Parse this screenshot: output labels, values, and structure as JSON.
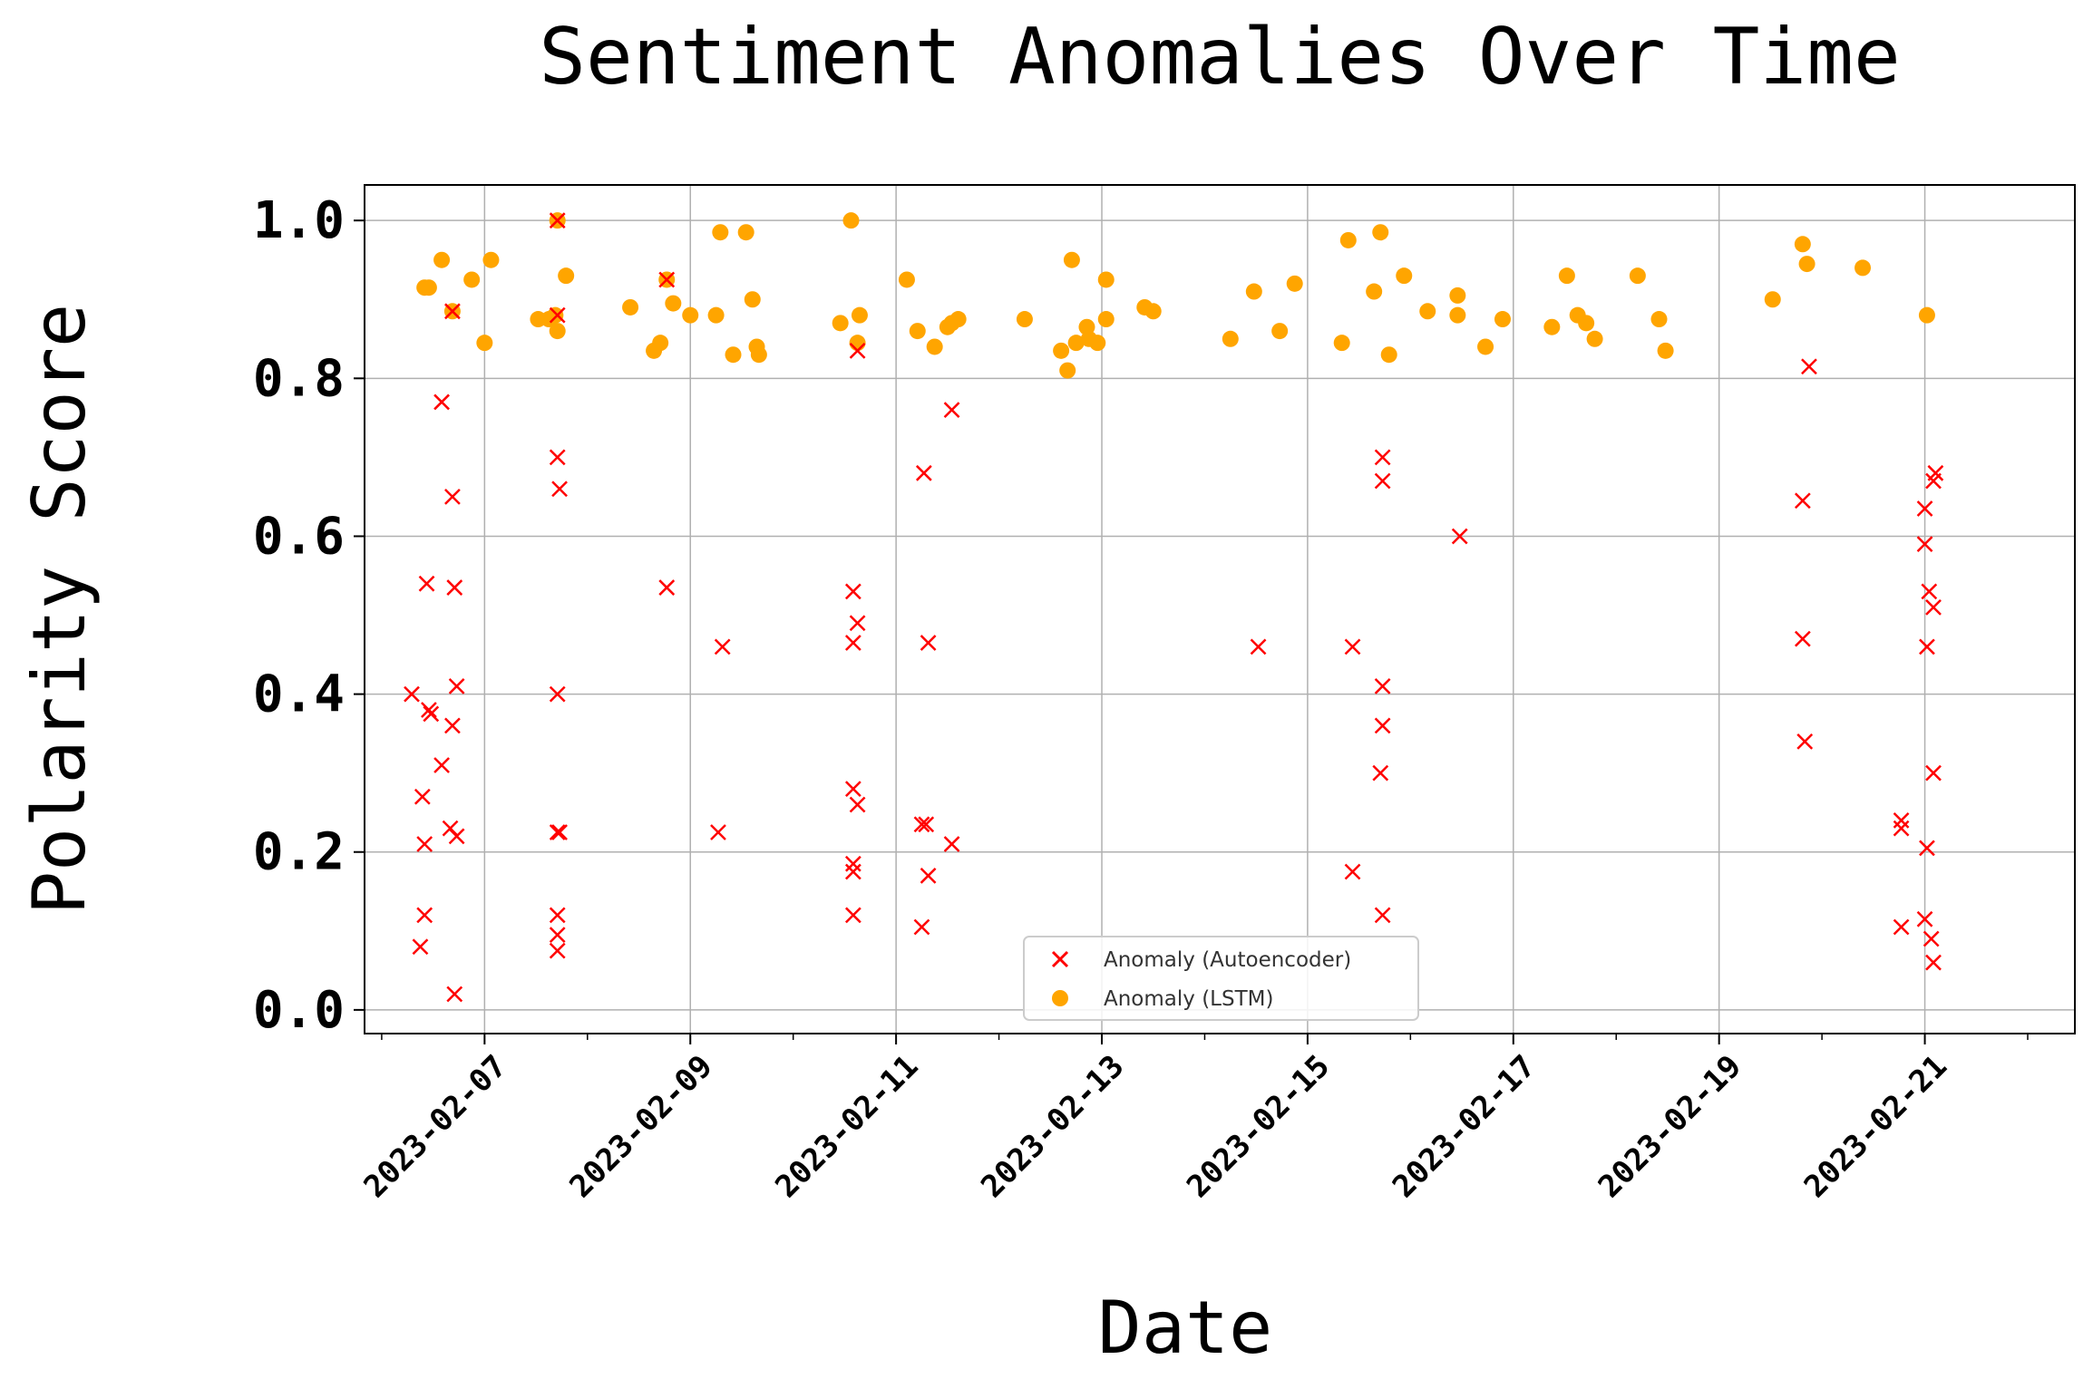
{
  "chart_data": {
    "type": "scatter",
    "title": "Sentiment Anomalies Over Time",
    "xlabel": "Date",
    "ylabel": "Polarity Score",
    "x_range": [
      "2023-02-05T20:00",
      "2023-02-22T11:00"
    ],
    "ylim": [
      -0.03,
      1.045
    ],
    "yticks": [
      "0.0",
      "0.2",
      "0.4",
      "0.6",
      "0.8",
      "1.0"
    ],
    "xticks": [
      "2023-02-07",
      "2023-02-09",
      "2023-02-11",
      "2023-02-13",
      "2023-02-15",
      "2023-02-17",
      "2023-02-19",
      "2023-02-21"
    ],
    "grid": true,
    "legend_position": "lower center",
    "colors": {
      "autoencoder": "#ff0000",
      "lstm": "#ffa500"
    },
    "series": [
      {
        "name": "Anomaly (Autoencoder)",
        "marker": "x",
        "points": [
          {
            "x": "2023-02-06T07:00",
            "y": 0.4
          },
          {
            "x": "2023-02-06T09:00",
            "y": 0.08
          },
          {
            "x": "2023-02-06T09:30",
            "y": 0.27
          },
          {
            "x": "2023-02-06T10:00",
            "y": 0.12
          },
          {
            "x": "2023-02-06T10:00",
            "y": 0.21
          },
          {
            "x": "2023-02-06T10:30",
            "y": 0.54
          },
          {
            "x": "2023-02-06T11:00",
            "y": 0.38
          },
          {
            "x": "2023-02-06T11:30",
            "y": 0.375
          },
          {
            "x": "2023-02-06T14:00",
            "y": 0.31
          },
          {
            "x": "2023-02-06T14:00",
            "y": 0.77
          },
          {
            "x": "2023-02-06T16:00",
            "y": 0.23
          },
          {
            "x": "2023-02-06T16:30",
            "y": 0.36
          },
          {
            "x": "2023-02-06T16:30",
            "y": 0.65
          },
          {
            "x": "2023-02-06T17:00",
            "y": 0.02
          },
          {
            "x": "2023-02-06T17:00",
            "y": 0.535
          },
          {
            "x": "2023-02-06T17:30",
            "y": 0.41
          },
          {
            "x": "2023-02-06T17:30",
            "y": 0.22
          },
          {
            "x": "2023-02-06T16:30",
            "y": 0.885
          },
          {
            "x": "2023-02-07T17:00",
            "y": 0.075
          },
          {
            "x": "2023-02-07T17:00",
            "y": 0.095
          },
          {
            "x": "2023-02-07T17:00",
            "y": 0.12
          },
          {
            "x": "2023-02-07T17:00",
            "y": 0.225
          },
          {
            "x": "2023-02-07T17:30",
            "y": 0.225
          },
          {
            "x": "2023-02-07T17:00",
            "y": 0.4
          },
          {
            "x": "2023-02-07T17:30",
            "y": 0.66
          },
          {
            "x": "2023-02-07T17:00",
            "y": 0.7
          },
          {
            "x": "2023-02-07T17:00",
            "y": 0.88
          },
          {
            "x": "2023-02-07T17:00",
            "y": 1.0
          },
          {
            "x": "2023-02-08T18:30",
            "y": 0.535
          },
          {
            "x": "2023-02-08T18:30",
            "y": 0.925
          },
          {
            "x": "2023-02-09T06:30",
            "y": 0.225
          },
          {
            "x": "2023-02-09T07:30",
            "y": 0.46
          },
          {
            "x": "2023-02-10T14:00",
            "y": 0.12
          },
          {
            "x": "2023-02-10T14:00",
            "y": 0.175
          },
          {
            "x": "2023-02-10T14:00",
            "y": 0.185
          },
          {
            "x": "2023-02-10T14:00",
            "y": 0.28
          },
          {
            "x": "2023-02-10T14:00",
            "y": 0.465
          },
          {
            "x": "2023-02-10T14:00",
            "y": 0.53
          },
          {
            "x": "2023-02-10T15:00",
            "y": 0.26
          },
          {
            "x": "2023-02-10T15:00",
            "y": 0.49
          },
          {
            "x": "2023-02-10T15:00",
            "y": 0.835
          },
          {
            "x": "2023-02-11T06:00",
            "y": 0.105
          },
          {
            "x": "2023-02-11T06:00",
            "y": 0.235
          },
          {
            "x": "2023-02-11T07:00",
            "y": 0.235
          },
          {
            "x": "2023-02-11T06:30",
            "y": 0.68
          },
          {
            "x": "2023-02-11T07:30",
            "y": 0.17
          },
          {
            "x": "2023-02-11T07:30",
            "y": 0.465
          },
          {
            "x": "2023-02-11T13:00",
            "y": 0.21
          },
          {
            "x": "2023-02-11T13:00",
            "y": 0.76
          },
          {
            "x": "2023-02-14T12:30",
            "y": 0.46
          },
          {
            "x": "2023-02-15T10:30",
            "y": 0.175
          },
          {
            "x": "2023-02-15T10:30",
            "y": 0.46
          },
          {
            "x": "2023-02-15T17:30",
            "y": 0.12
          },
          {
            "x": "2023-02-15T17:00",
            "y": 0.3
          },
          {
            "x": "2023-02-15T17:30",
            "y": 0.36
          },
          {
            "x": "2023-02-15T17:30",
            "y": 0.41
          },
          {
            "x": "2023-02-15T17:30",
            "y": 0.67
          },
          {
            "x": "2023-02-15T17:30",
            "y": 0.7
          },
          {
            "x": "2023-02-16T11:30",
            "y": 0.6
          },
          {
            "x": "2023-02-19T20:00",
            "y": 0.34
          },
          {
            "x": "2023-02-19T19:30",
            "y": 0.47
          },
          {
            "x": "2023-02-19T19:30",
            "y": 0.645
          },
          {
            "x": "2023-02-19T21:00",
            "y": 0.815
          },
          {
            "x": "2023-02-20T18:30",
            "y": 0.105
          },
          {
            "x": "2023-02-20T18:30",
            "y": 0.23
          },
          {
            "x": "2023-02-20T18:30",
            "y": 0.24
          },
          {
            "x": "2023-02-21T00:00",
            "y": 0.115
          },
          {
            "x": "2023-02-21T00:30",
            "y": 0.205
          },
          {
            "x": "2023-02-21T00:30",
            "y": 0.46
          },
          {
            "x": "2023-02-21T00:00",
            "y": 0.59
          },
          {
            "x": "2023-02-21T00:00",
            "y": 0.635
          },
          {
            "x": "2023-02-21T01:00",
            "y": 0.53
          },
          {
            "x": "2023-02-21T02:00",
            "y": 0.51
          },
          {
            "x": "2023-02-21T02:00",
            "y": 0.3
          },
          {
            "x": "2023-02-21T02:00",
            "y": 0.06
          },
          {
            "x": "2023-02-21T01:30",
            "y": 0.09
          },
          {
            "x": "2023-02-21T02:00",
            "y": 0.67
          },
          {
            "x": "2023-02-21T02:30",
            "y": 0.68
          }
        ]
      },
      {
        "name": "Anomaly (LSTM)",
        "marker": "o",
        "points": [
          {
            "x": "2023-02-06T10:00",
            "y": 0.915
          },
          {
            "x": "2023-02-06T11:00",
            "y": 0.915
          },
          {
            "x": "2023-02-06T14:00",
            "y": 0.95
          },
          {
            "x": "2023-02-06T16:30",
            "y": 0.885
          },
          {
            "x": "2023-02-06T21:00",
            "y": 0.925
          },
          {
            "x": "2023-02-07T00:00",
            "y": 0.845
          },
          {
            "x": "2023-02-07T01:30",
            "y": 0.95
          },
          {
            "x": "2023-02-07T12:30",
            "y": 0.875
          },
          {
            "x": "2023-02-07T15:00",
            "y": 0.875
          },
          {
            "x": "2023-02-07T16:30",
            "y": 0.88
          },
          {
            "x": "2023-02-07T17:00",
            "y": 0.86
          },
          {
            "x": "2023-02-07T17:00",
            "y": 1.0
          },
          {
            "x": "2023-02-07T19:00",
            "y": 0.93
          },
          {
            "x": "2023-02-08T10:00",
            "y": 0.89
          },
          {
            "x": "2023-02-08T15:30",
            "y": 0.835
          },
          {
            "x": "2023-02-08T17:00",
            "y": 0.845
          },
          {
            "x": "2023-02-08T18:30",
            "y": 0.925
          },
          {
            "x": "2023-02-08T20:00",
            "y": 0.895
          },
          {
            "x": "2023-02-09T00:00",
            "y": 0.88
          },
          {
            "x": "2023-02-09T06:00",
            "y": 0.88
          },
          {
            "x": "2023-02-09T07:00",
            "y": 0.985
          },
          {
            "x": "2023-02-09T10:00",
            "y": 0.83
          },
          {
            "x": "2023-02-09T13:00",
            "y": 0.985
          },
          {
            "x": "2023-02-09T14:30",
            "y": 0.9
          },
          {
            "x": "2023-02-09T15:30",
            "y": 0.84
          },
          {
            "x": "2023-02-09T16:00",
            "y": 0.83
          },
          {
            "x": "2023-02-10T11:00",
            "y": 0.87
          },
          {
            "x": "2023-02-10T13:30",
            "y": 1.0
          },
          {
            "x": "2023-02-10T15:00",
            "y": 0.845
          },
          {
            "x": "2023-02-10T15:30",
            "y": 0.88
          },
          {
            "x": "2023-02-11T02:30",
            "y": 0.925
          },
          {
            "x": "2023-02-11T05:00",
            "y": 0.86
          },
          {
            "x": "2023-02-11T09:00",
            "y": 0.84
          },
          {
            "x": "2023-02-11T12:00",
            "y": 0.865
          },
          {
            "x": "2023-02-11T13:00",
            "y": 0.87
          },
          {
            "x": "2023-02-11T14:30",
            "y": 0.875
          },
          {
            "x": "2023-02-12T06:00",
            "y": 0.875
          },
          {
            "x": "2023-02-12T14:30",
            "y": 0.835
          },
          {
            "x": "2023-02-12T16:00",
            "y": 0.81
          },
          {
            "x": "2023-02-12T17:00",
            "y": 0.95
          },
          {
            "x": "2023-02-12T18:00",
            "y": 0.845
          },
          {
            "x": "2023-02-12T20:30",
            "y": 0.865
          },
          {
            "x": "2023-02-12T21:00",
            "y": 0.85
          },
          {
            "x": "2023-02-12T23:00",
            "y": 0.845
          },
          {
            "x": "2023-02-13T01:00",
            "y": 0.925
          },
          {
            "x": "2023-02-13T01:00",
            "y": 0.875
          },
          {
            "x": "2023-02-13T10:00",
            "y": 0.89
          },
          {
            "x": "2023-02-13T12:00",
            "y": 0.885
          },
          {
            "x": "2023-02-14T06:00",
            "y": 0.85
          },
          {
            "x": "2023-02-14T11:30",
            "y": 0.91
          },
          {
            "x": "2023-02-14T17:30",
            "y": 0.86
          },
          {
            "x": "2023-02-14T21:00",
            "y": 0.92
          },
          {
            "x": "2023-02-15T08:00",
            "y": 0.845
          },
          {
            "x": "2023-02-15T09:30",
            "y": 0.975
          },
          {
            "x": "2023-02-15T15:30",
            "y": 0.91
          },
          {
            "x": "2023-02-15T17:00",
            "y": 0.985
          },
          {
            "x": "2023-02-15T19:00",
            "y": 0.83
          },
          {
            "x": "2023-02-15T22:30",
            "y": 0.93
          },
          {
            "x": "2023-02-16T04:00",
            "y": 0.885
          },
          {
            "x": "2023-02-16T11:00",
            "y": 0.905
          },
          {
            "x": "2023-02-16T11:00",
            "y": 0.88
          },
          {
            "x": "2023-02-16T17:30",
            "y": 0.84
          },
          {
            "x": "2023-02-16T21:30",
            "y": 0.875
          },
          {
            "x": "2023-02-17T09:00",
            "y": 0.865
          },
          {
            "x": "2023-02-17T12:30",
            "y": 0.93
          },
          {
            "x": "2023-02-17T15:00",
            "y": 0.88
          },
          {
            "x": "2023-02-17T17:00",
            "y": 0.87
          },
          {
            "x": "2023-02-17T19:00",
            "y": 0.85
          },
          {
            "x": "2023-02-18T05:00",
            "y": 0.93
          },
          {
            "x": "2023-02-18T10:00",
            "y": 0.875
          },
          {
            "x": "2023-02-18T11:30",
            "y": 0.835
          },
          {
            "x": "2023-02-19T12:30",
            "y": 0.9
          },
          {
            "x": "2023-02-19T19:30",
            "y": 0.97
          },
          {
            "x": "2023-02-19T20:30",
            "y": 0.945
          },
          {
            "x": "2023-02-20T09:30",
            "y": 0.94
          },
          {
            "x": "2023-02-21T00:30",
            "y": 0.88
          }
        ]
      }
    ]
  }
}
